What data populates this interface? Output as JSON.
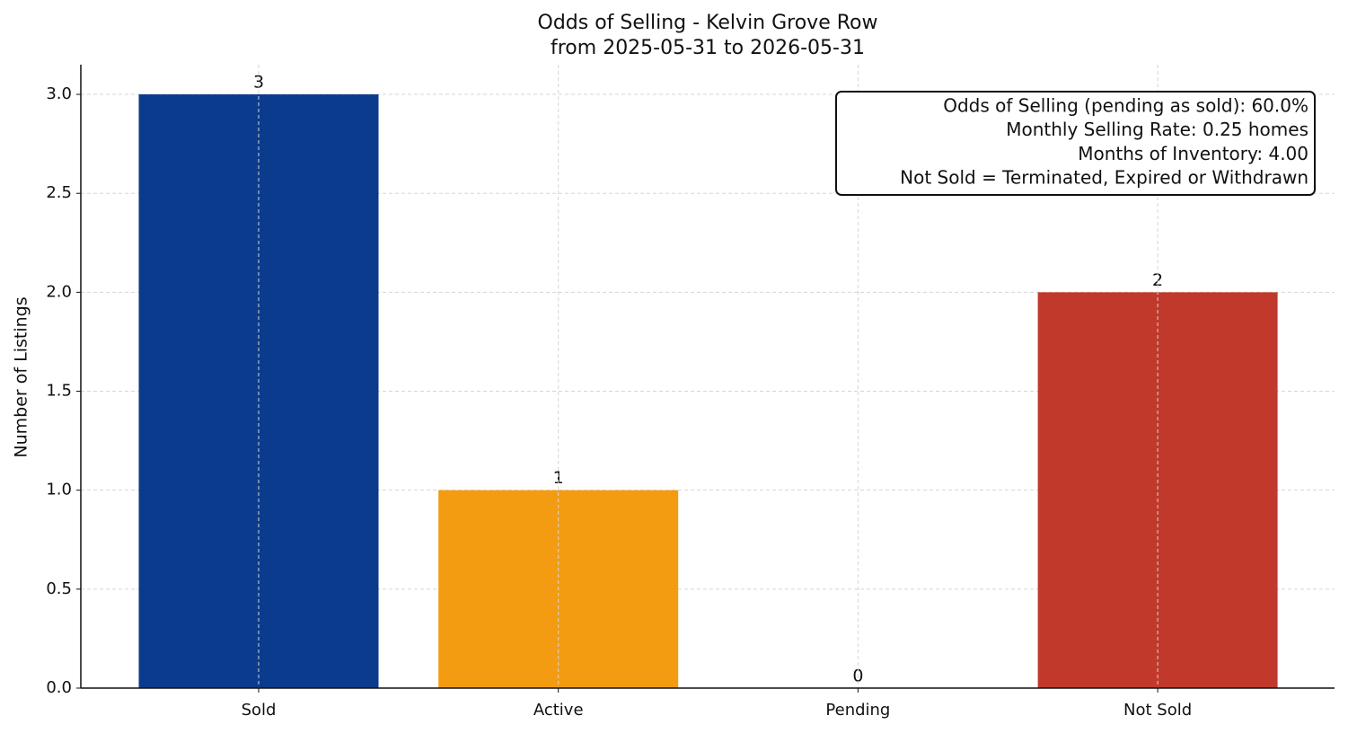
{
  "chart_data": {
    "type": "bar",
    "title": [
      "Odds of Selling - Kelvin Grove Row",
      "from 2025-05-31 to 2026-05-31"
    ],
    "ylabel": "Number of Listings",
    "categories": [
      "Sold",
      "Active",
      "Pending",
      "Not Sold"
    ],
    "values": [
      3,
      1,
      0,
      2
    ],
    "colors": [
      "#0b3b8c",
      "#f39c12",
      "#8e44ad",
      "#c0392b"
    ],
    "ylim": [
      0,
      3.15
    ],
    "yticks": [
      {
        "value": 0,
        "label": "0.0"
      },
      {
        "value": 0.5,
        "label": "0.5"
      },
      {
        "value": 1,
        "label": "1.0"
      },
      {
        "value": 1.5,
        "label": "1.5"
      },
      {
        "value": 2,
        "label": "2.0"
      },
      {
        "value": 2.5,
        "label": "2.5"
      },
      {
        "value": 3,
        "label": "3.0"
      }
    ],
    "grid": true,
    "annotation": [
      "Odds of Selling (pending as sold): 60.0%",
      "Monthly Selling Rate: 0.25 homes",
      "Months of Inventory: 4.00",
      "Not Sold = Terminated, Expired or Withdrawn"
    ]
  }
}
